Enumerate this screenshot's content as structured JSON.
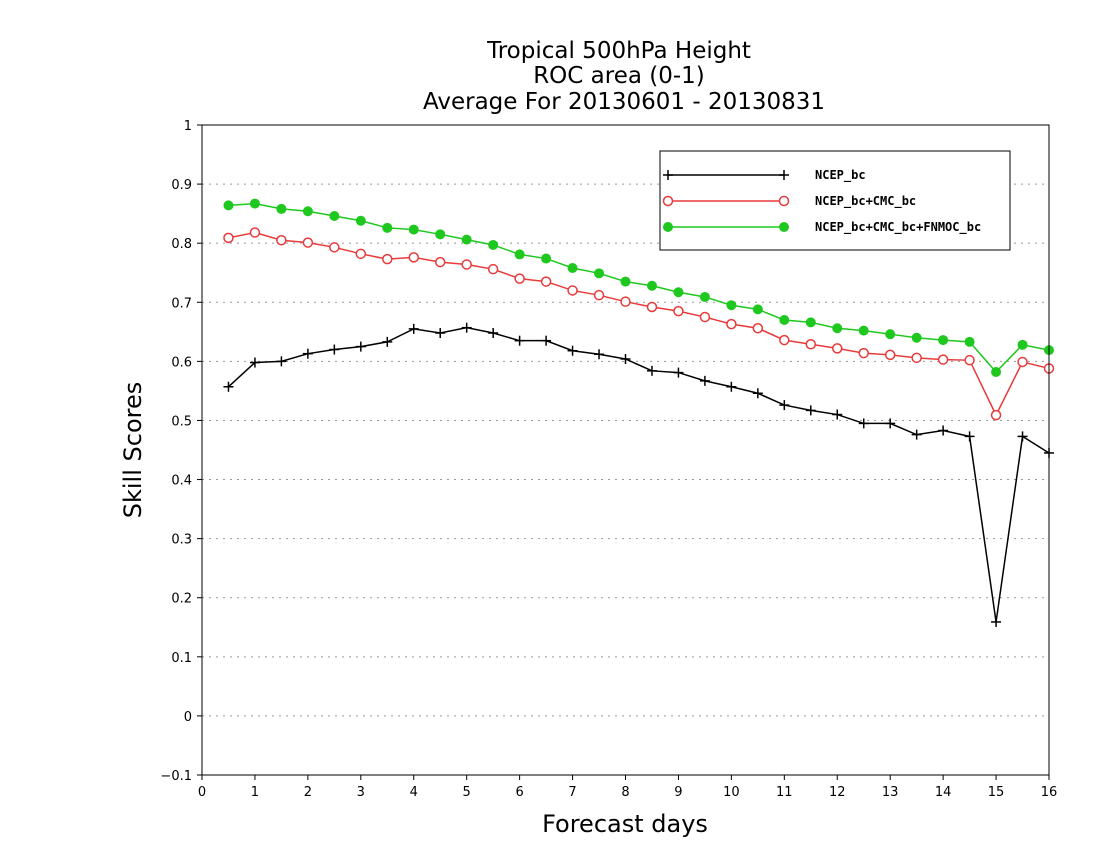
{
  "chart_data": {
    "type": "line",
    "title_lines": [
      "Tropical 500hPa Height",
      "ROC area (0-1)",
      "Average For 20130601 - 20130831"
    ],
    "xlabel": "Forecast days",
    "ylabel": "Skill Scores",
    "xlim": [
      0,
      16
    ],
    "ylim": [
      -0.1,
      1
    ],
    "xticks": [
      "0",
      "1",
      "2",
      "3",
      "4",
      "5",
      "6",
      "7",
      "8",
      "9",
      "10",
      "11",
      "12",
      "13",
      "14",
      "15",
      "16"
    ],
    "yticks": [
      "−0.1",
      "0",
      "0.1",
      "0.2",
      "0.3",
      "0.4",
      "0.5",
      "0.6",
      "0.7",
      "0.8",
      "0.9",
      "1"
    ],
    "grid": "horizontal dotted",
    "legend_position": "top-right",
    "x": [
      0.5,
      1,
      1.5,
      2,
      2.5,
      3,
      3.5,
      4,
      4.5,
      5,
      5.5,
      6,
      6.5,
      7,
      7.5,
      8,
      8.5,
      9,
      9.5,
      10,
      10.5,
      11,
      11.5,
      12,
      12.5,
      13,
      13.5,
      14,
      14.5,
      15,
      15.5,
      16
    ],
    "series": [
      {
        "name": "NCEP_bc",
        "color": "#000000",
        "marker": "plus",
        "values": [
          0.557,
          0.598,
          0.6,
          0.613,
          0.62,
          0.625,
          0.633,
          0.655,
          0.648,
          0.657,
          0.648,
          0.635,
          0.635,
          0.618,
          0.612,
          0.604,
          0.584,
          0.581,
          0.567,
          0.557,
          0.546,
          0.526,
          0.517,
          0.51,
          0.495,
          0.495,
          0.476,
          0.483,
          0.473,
          0.159,
          0.473,
          0.445
        ]
      },
      {
        "name": "NCEP_bc+CMC_bc",
        "color": "#e83a3a",
        "marker": "open-circle",
        "values": [
          0.809,
          0.818,
          0.805,
          0.801,
          0.793,
          0.782,
          0.773,
          0.776,
          0.768,
          0.764,
          0.756,
          0.74,
          0.735,
          0.72,
          0.712,
          0.701,
          0.692,
          0.685,
          0.675,
          0.663,
          0.656,
          0.636,
          0.629,
          0.622,
          0.614,
          0.611,
          0.606,
          0.603,
          0.602,
          0.509,
          0.599,
          0.588
        ]
      },
      {
        "name": "NCEP_bc+CMC_bc+FNMOC_bc",
        "color": "#1ec81e",
        "marker": "filled-circle",
        "values": [
          0.864,
          0.867,
          0.858,
          0.854,
          0.846,
          0.838,
          0.826,
          0.823,
          0.815,
          0.806,
          0.797,
          0.781,
          0.774,
          0.758,
          0.749,
          0.735,
          0.728,
          0.717,
          0.709,
          0.695,
          0.688,
          0.67,
          0.666,
          0.656,
          0.652,
          0.646,
          0.64,
          0.636,
          0.633,
          0.582,
          0.628,
          0.619
        ]
      }
    ]
  }
}
